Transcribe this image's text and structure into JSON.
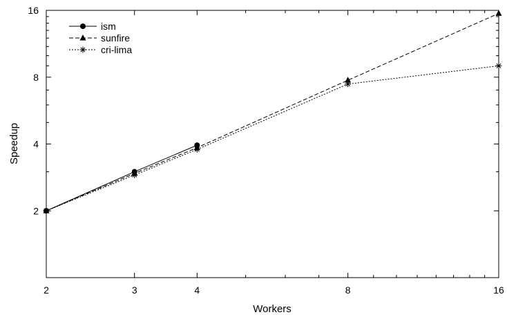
{
  "chart_data": {
    "type": "line",
    "xlabel": "Workers",
    "ylabel": "Speedup",
    "xlim": [
      2,
      16
    ],
    "ylim": [
      1,
      16
    ],
    "xticks": [
      2,
      3,
      4,
      8,
      16
    ],
    "yticks": [
      2,
      4,
      8,
      16
    ],
    "x_tick_labels": [
      "2",
      "3",
      "4",
      "8",
      "16"
    ],
    "y_tick_labels": [
      "2",
      "4",
      "8",
      "16"
    ],
    "legend_position": "top-left",
    "grid": false,
    "series": [
      {
        "name": "ism",
        "marker": "circle",
        "line_style": "solid",
        "x": [
          2,
          3,
          4
        ],
        "y": [
          2,
          3.0,
          3.95
        ]
      },
      {
        "name": "sunfire",
        "marker": "triangle",
        "line_style": "dashed",
        "x": [
          2,
          3,
          4,
          8,
          16
        ],
        "y": [
          2,
          2.95,
          3.85,
          7.75,
          15.5
        ]
      },
      {
        "name": "cri-lima",
        "marker": "star",
        "line_style": "dotted",
        "x": [
          2,
          3,
          4,
          8,
          16
        ],
        "y": [
          2,
          2.9,
          3.78,
          7.45,
          9.0
        ]
      }
    ]
  }
}
